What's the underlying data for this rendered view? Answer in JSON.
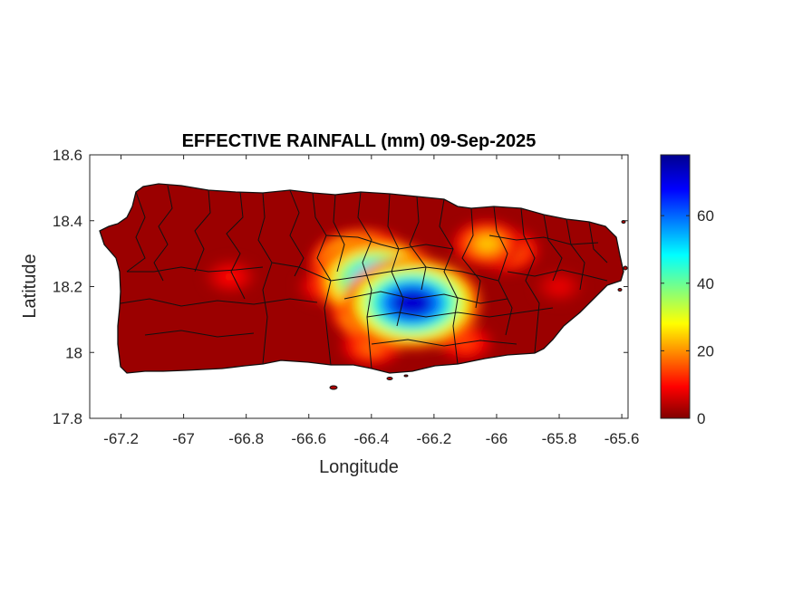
{
  "chart_data": {
    "type": "heatmap",
    "title": "EFFECTIVE RAINFALL (mm) 09-Sep-2025",
    "xlabel": "Longitude",
    "ylabel": "Latitude",
    "xlim": [
      -67.3,
      -65.58
    ],
    "ylim": [
      17.8,
      18.6
    ],
    "x_ticks": [
      -67.2,
      -67,
      -66.8,
      -66.6,
      -66.4,
      -66.2,
      -66,
      -65.8,
      -65.6
    ],
    "x_tick_labels": [
      "-67.2",
      "-67",
      "-66.8",
      "-66.6",
      "-66.4",
      "-66.2",
      "-66",
      "-65.8",
      "-65.6"
    ],
    "y_ticks": [
      17.8,
      18,
      18.2,
      18.4,
      18.6
    ],
    "y_tick_labels": [
      "17.8",
      "18",
      "18.2",
      "18.4",
      "18.6"
    ],
    "colorbar": {
      "colormap": "jet",
      "range": [
        0,
        78
      ],
      "ticks": [
        0,
        20,
        40,
        60
      ],
      "tick_labels": [
        "0",
        "20",
        "40",
        "60"
      ]
    },
    "grid": false,
    "rainfall_peaks": [
      {
        "lon": -66.38,
        "lat": 18.22,
        "value": 62
      },
      {
        "lon": -66.27,
        "lat": 18.15,
        "value": 72
      },
      {
        "lon": -66.43,
        "lat": 18.27,
        "value": 48
      },
      {
        "lon": -66.36,
        "lat": 18.13,
        "value": 50
      },
      {
        "lon": -66.2,
        "lat": 18.13,
        "value": 28
      },
      {
        "lon": -66.03,
        "lat": 18.33,
        "value": 24
      },
      {
        "lon": -65.97,
        "lat": 18.31,
        "value": 22
      },
      {
        "lon": -66.4,
        "lat": 18.02,
        "value": 18
      },
      {
        "lon": -66.55,
        "lat": 18.2,
        "value": 12
      },
      {
        "lon": -66.85,
        "lat": 18.23,
        "value": 10
      },
      {
        "lon": -66.1,
        "lat": 18.03,
        "value": 14
      },
      {
        "lon": -65.8,
        "lat": 18.2,
        "value": 8
      }
    ],
    "background_value": 2
  }
}
